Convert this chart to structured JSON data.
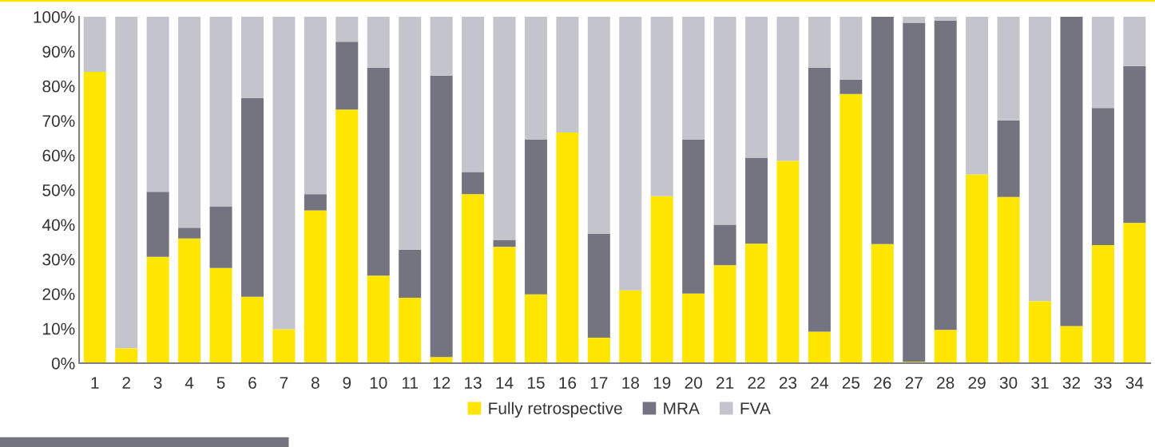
{
  "chart_data": {
    "type": "bar",
    "stacked": true,
    "categories": [
      "1",
      "2",
      "3",
      "4",
      "5",
      "6",
      "7",
      "8",
      "9",
      "10",
      "11",
      "12",
      "13",
      "14",
      "15",
      "16",
      "17",
      "18",
      "19",
      "20",
      "21",
      "22",
      "23",
      "24",
      "25",
      "26",
      "27",
      "28",
      "29",
      "30",
      "31",
      "32",
      "33",
      "34"
    ],
    "series": [
      {
        "name": "Fully retrospective",
        "color": "#ffe600",
        "values": [
          84.1,
          4.3,
          30.7,
          36.0,
          27.5,
          19.2,
          9.8,
          44.1,
          73.2,
          25.3,
          18.9,
          1.8,
          48.8,
          33.6,
          19.9,
          66.6,
          7.4,
          21.0,
          48.2,
          20.1,
          28.3,
          34.5,
          58.4,
          9.1,
          77.7,
          34.4,
          0.4,
          9.6,
          54.5,
          48.0,
          17.9,
          10.7,
          34.1,
          40.5
        ]
      },
      {
        "name": "MRA",
        "color": "#747480",
        "values": [
          0,
          0,
          18.8,
          3.1,
          17.8,
          57.3,
          0,
          4.7,
          19.6,
          60.0,
          13.9,
          81.2,
          6.4,
          2.0,
          44.6,
          0,
          30.0,
          0,
          0,
          44.4,
          11.7,
          24.7,
          0,
          76.2,
          4.1,
          65.6,
          97.9,
          89.3,
          0,
          22.1,
          0,
          89.3,
          39.6,
          45.3
        ]
      },
      {
        "name": "FVA",
        "color": "#c4c4cd",
        "values": [
          15.9,
          95.7,
          50.5,
          60.9,
          54.7,
          23.5,
          90.2,
          51.2,
          7.2,
          14.7,
          67.2,
          17.0,
          44.8,
          64.4,
          35.5,
          33.4,
          62.6,
          79.0,
          51.8,
          35.5,
          60.0,
          40.8,
          41.6,
          14.7,
          18.2,
          0,
          1.7,
          1.1,
          45.5,
          29.9,
          82.1,
          0,
          26.3,
          14.2
        ]
      }
    ],
    "ylim": [
      0,
      100
    ],
    "yticks": [
      {
        "value": 0,
        "label": "0%"
      },
      {
        "value": 10,
        "label": "10%"
      },
      {
        "value": 20,
        "label": "20%"
      },
      {
        "value": 30,
        "label": "30%"
      },
      {
        "value": 40,
        "label": "40%"
      },
      {
        "value": 50,
        "label": "50%"
      },
      {
        "value": 60,
        "label": "60%"
      },
      {
        "value": 70,
        "label": "70%"
      },
      {
        "value": 80,
        "label": "80%"
      },
      {
        "value": 90,
        "label": "90%"
      },
      {
        "value": 100,
        "label": "100%"
      }
    ],
    "grid": false,
    "legend": "bottom"
  }
}
